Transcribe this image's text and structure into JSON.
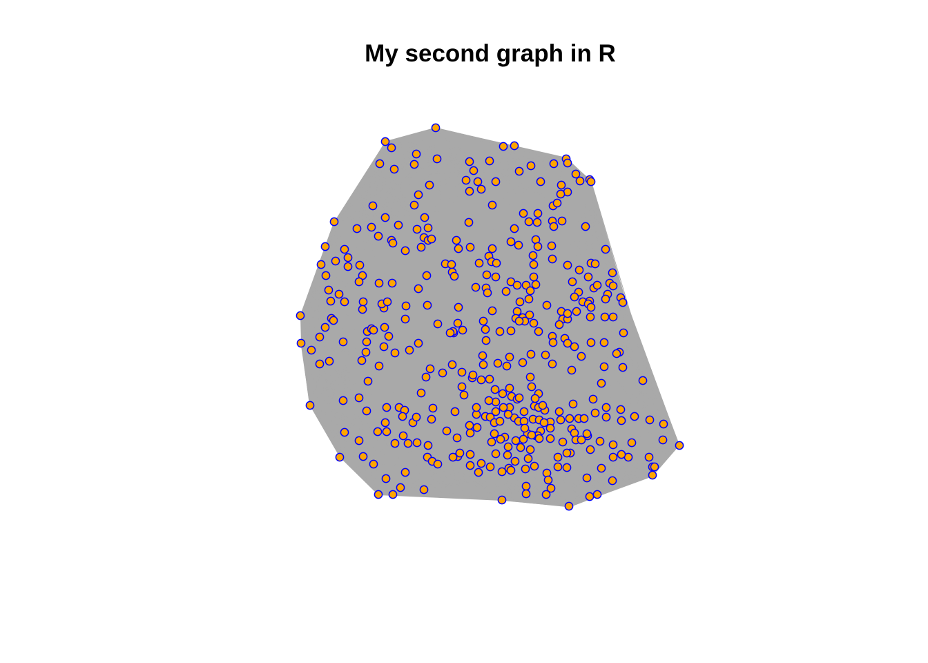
{
  "title": "My second graph in R",
  "colors": {
    "background": "#ffffff",
    "edge": "#a9a9a9",
    "vertex_fill": "#ffa500",
    "vertex_border": "#0000ff",
    "title": "#000000"
  },
  "graph": {
    "layout": "force-directed network, densely connected",
    "edge_style": "thin grey lines",
    "vertex_style": "orange circles with blue outline",
    "vertex_labels": "none"
  }
}
